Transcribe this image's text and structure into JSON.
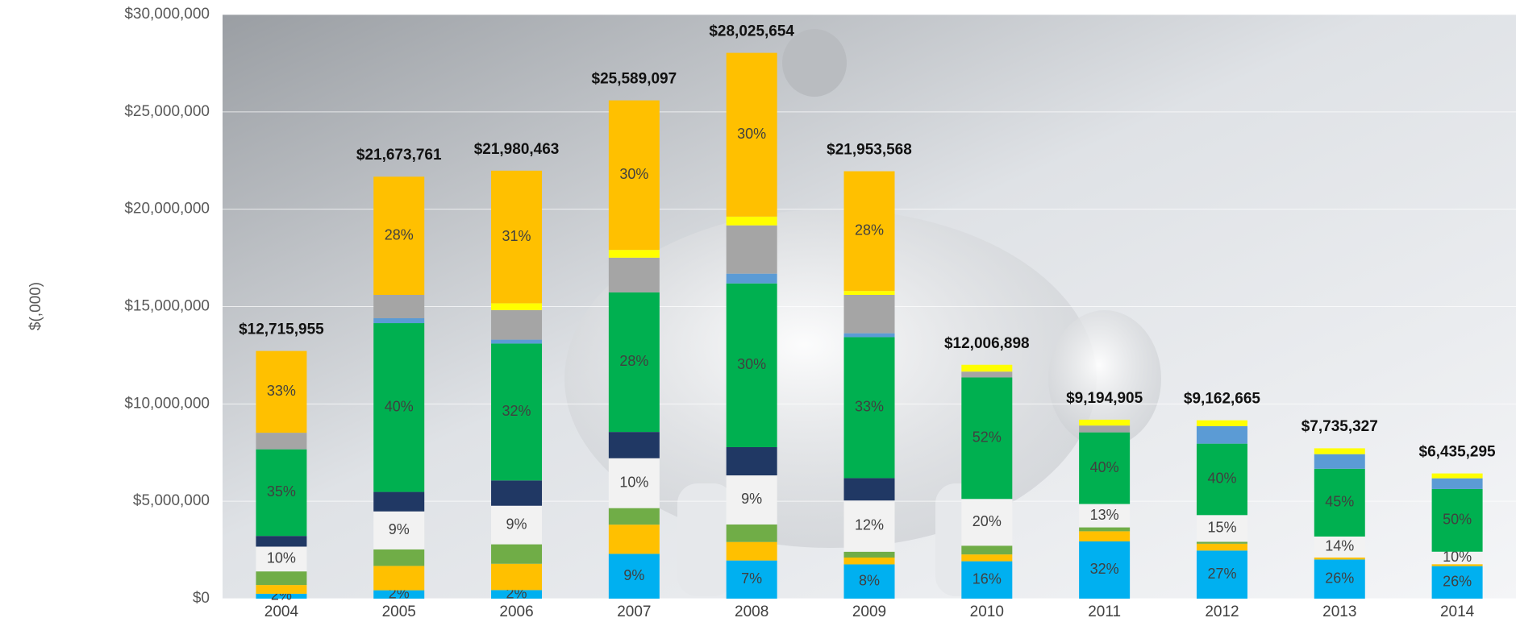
{
  "chart_data": {
    "type": "stacked_bar",
    "y_label": "$(,000)",
    "categories": [
      "2004",
      "2005",
      "2006",
      "2007",
      "2008",
      "2009",
      "2010",
      "2011",
      "2012",
      "2013",
      "2014"
    ],
    "ylim": [
      0,
      30000000
    ],
    "yticks": [
      {
        "value": 0,
        "label": "$0"
      },
      {
        "value": 5000000,
        "label": "$5,000,000"
      },
      {
        "value": 10000000,
        "label": "$10,000,000"
      },
      {
        "value": 15000000,
        "label": "$15,000,000"
      },
      {
        "value": 20000000,
        "label": "$20,000,000"
      },
      {
        "value": 25000000,
        "label": "$25,000,000"
      },
      {
        "value": 30000000,
        "label": "$30,000,000"
      }
    ],
    "grid": true,
    "totals": [
      12715955,
      21673761,
      21980463,
      25589097,
      28025654,
      21953568,
      12006898,
      9194905,
      9162665,
      7735327,
      6435295
    ],
    "total_labels": [
      "$12,715,955",
      "$21,673,761",
      "$21,980,463",
      "$25,589,097",
      "$28,025,654",
      "$21,953,568",
      "$12,006,898",
      "$9,194,905",
      "$9,162,665",
      "$7,735,327",
      "$6,435,295"
    ],
    "series": [
      {
        "color": "#00b0f0",
        "values": [
          250000,
          430000,
          440000,
          2300000,
          1960000,
          1760000,
          1920000,
          2940000,
          2470000,
          2010000,
          1670000
        ],
        "value_labels": [
          "2%",
          "2%",
          "2%",
          "9%",
          "7%",
          "8%",
          "16%",
          "32%",
          "27%",
          "26%",
          "26%"
        ]
      },
      {
        "color": "#ffc000",
        "values": [
          450000,
          1250000,
          1350000,
          1500000,
          950000,
          350000,
          350000,
          520000,
          350000,
          100000,
          100000
        ]
      },
      {
        "color": "#70ad47",
        "values": [
          700000,
          850000,
          1000000,
          850000,
          900000,
          300000,
          450000,
          200000,
          100000,
          0,
          0
        ]
      },
      {
        "color": "#f2f2f2",
        "values": [
          1270000,
          1950000,
          1980000,
          2560000,
          2520000,
          2630000,
          2400000,
          1200000,
          1370000,
          1080000,
          640000
        ],
        "value_labels": [
          "10%",
          "9%",
          "9%",
          "10%",
          "9%",
          "12%",
          "20%",
          "13%",
          "15%",
          "14%",
          "10%"
        ]
      },
      {
        "color": "#203864",
        "values": [
          550000,
          1000000,
          1300000,
          1350000,
          1450000,
          1150000,
          0,
          0,
          0,
          0,
          0
        ]
      },
      {
        "color": "#00b050",
        "values": [
          4450000,
          8670000,
          7030000,
          7170000,
          8410000,
          7240000,
          6240000,
          3680000,
          3670000,
          3480000,
          3220000
        ],
        "value_labels": [
          "35%",
          "40%",
          "32%",
          "28%",
          "30%",
          "33%",
          "52%",
          "40%",
          "40%",
          "45%",
          "50%"
        ]
      },
      {
        "color": "#5b9bd5",
        "values": [
          0,
          250000,
          200000,
          0,
          500000,
          200000,
          0,
          0,
          900000,
          750000,
          550000
        ]
      },
      {
        "color": "#a5a5a5",
        "values": [
          850000,
          1200000,
          1520000,
          1780000,
          2480000,
          1970000,
          300000,
          350000,
          0,
          0,
          0
        ]
      },
      {
        "color": "#ffff00",
        "values": [
          0,
          0,
          350000,
          400000,
          450000,
          200000,
          350000,
          300000,
          300000,
          300000,
          250000
        ]
      },
      {
        "color": "#ffc000",
        "values": [
          4200000,
          6070000,
          6810000,
          7680000,
          8410000,
          6150000,
          0,
          0,
          0,
          0,
          0
        ],
        "value_labels": [
          "33%",
          "28%",
          "31%",
          "30%",
          "30%",
          "28%",
          null,
          null,
          null,
          null,
          null
        ]
      }
    ]
  }
}
